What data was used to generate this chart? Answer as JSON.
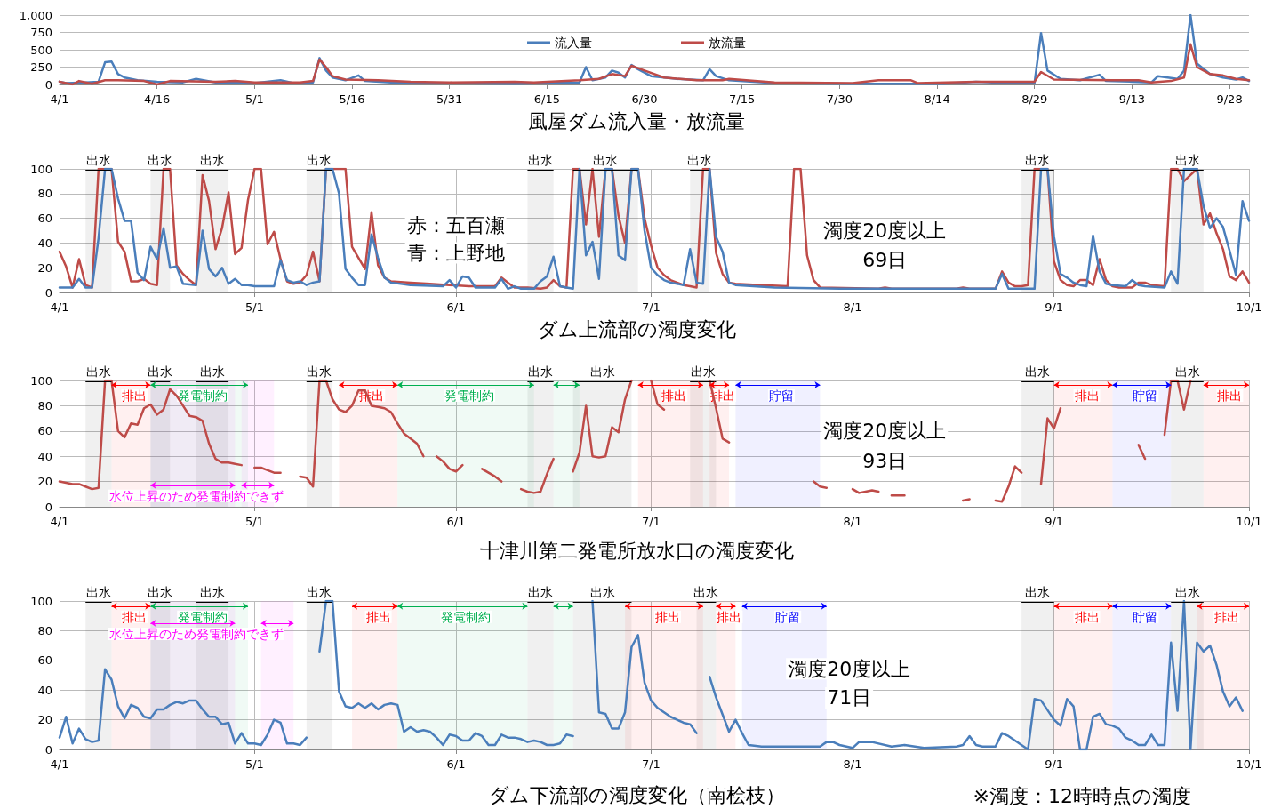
{
  "chart_data": [
    {
      "type": "line",
      "title": "風屋ダム流入量・放流量",
      "xlim": [
        "--04-01",
        "--10-01"
      ],
      "ylim": [
        0,
        1000
      ],
      "yticks": [
        0,
        250,
        500,
        750,
        {
          "value": 1000,
          "label": "1,000"
        }
      ],
      "xticks": [
        {
          "value": "--04-01",
          "label": "4/1"
        },
        {
          "value": "--04-16",
          "label": "4/16"
        },
        {
          "value": "--05-01",
          "label": "5/1"
        },
        {
          "value": "--05-16",
          "label": "5/16"
        },
        {
          "value": "--05-31",
          "label": "5/31"
        },
        {
          "value": "--06-15",
          "label": "6/15"
        },
        {
          "value": "--06-30",
          "label": "6/30"
        },
        {
          "value": "--07-15",
          "label": "7/15"
        },
        {
          "value": "--07-30",
          "label": "7/30"
        },
        {
          "value": "--08-14",
          "label": "8/14"
        },
        {
          "value": "--08-29",
          "label": "8/29"
        },
        {
          "value": "--09-13",
          "label": "9/13"
        },
        {
          "value": "--09-28",
          "label": "9/28"
        }
      ],
      "grid": "y",
      "legend": "top",
      "marker": "none",
      "line_style": "solid",
      "series": [
        {
          "name": "流入量",
          "color": "#4a7ebb",
          "x": [
            "--04-01",
            "--04-02",
            "--04-05",
            "--04-07",
            "--04-08",
            "--04-09",
            "--04-10",
            "--04-11",
            "--04-13",
            "--04-16",
            "--04-20",
            "--04-22",
            "--04-25",
            "--05-01",
            "--05-05",
            "--05-07",
            "--05-10",
            "--05-11",
            "--05-12",
            "--05-13",
            "--05-15",
            "--05-17",
            "--05-18",
            "--05-22",
            "--05-31",
            "--06-10",
            "--06-20",
            "--06-21",
            "--06-22",
            "--06-24",
            "--06-25",
            "--06-26",
            "--06-27",
            "--06-28",
            "--06-29",
            "--07-01",
            "--07-05",
            "--07-09",
            "--07-10",
            "--07-11",
            "--07-13",
            "--07-20",
            "--08-01",
            "--08-15",
            "--08-20",
            "--08-25",
            "--08-29",
            "--08-30",
            "--08-31",
            "--09-02",
            "--09-05",
            "--09-08",
            "--09-09",
            "--09-13",
            "--09-16",
            "--09-17",
            "--09-20",
            "--09-21",
            "--09-22",
            "--09-23",
            "--09-25",
            "--09-27",
            "--09-29",
            "--09-30",
            "--10-01"
          ],
          "values": [
            40,
            20,
            30,
            40,
            320,
            330,
            150,
            100,
            60,
            40,
            30,
            80,
            30,
            20,
            60,
            20,
            30,
            380,
            200,
            100,
            60,
            130,
            50,
            30,
            20,
            10,
            30,
            250,
            60,
            100,
            200,
            170,
            100,
            280,
            220,
            120,
            80,
            60,
            220,
            120,
            60,
            20,
            10,
            10,
            40,
            20,
            20,
            740,
            200,
            80,
            60,
            140,
            50,
            40,
            30,
            120,
            80,
            200,
            1000,
            300,
            150,
            100,
            70,
            100,
            50
          ]
        },
        {
          "name": "放流量",
          "color": "#be4b48",
          "x": [
            "--04-01",
            "--04-03",
            "--04-04",
            "--04-06",
            "--04-08",
            "--04-10",
            "--04-14",
            "--04-16",
            "--04-18",
            "--04-25",
            "--04-28",
            "--05-01",
            "--05-08",
            "--05-10",
            "--05-11",
            "--05-12",
            "--05-13",
            "--05-15",
            "--05-20",
            "--05-25",
            "--05-31",
            "--06-10",
            "--06-13",
            "--06-20",
            "--06-23",
            "--06-25",
            "--06-27",
            "--06-28",
            "--06-30",
            "--07-03",
            "--07-08",
            "--07-12",
            "--07-13",
            "--07-20",
            "--08-01",
            "--08-05",
            "--08-10",
            "--08-11",
            "--08-20",
            "--08-29",
            "--08-30",
            "--09-01",
            "--09-10",
            "--09-14",
            "--09-16",
            "--09-19",
            "--09-21",
            "--09-22",
            "--09-23",
            "--09-25",
            "--09-27",
            "--09-29",
            "--10-01"
          ],
          "values": [
            40,
            0,
            50,
            10,
            60,
            60,
            50,
            0,
            50,
            40,
            50,
            30,
            30,
            50,
            360,
            250,
            120,
            70,
            60,
            40,
            30,
            40,
            30,
            60,
            80,
            150,
            120,
            270,
            200,
            100,
            60,
            60,
            80,
            30,
            20,
            60,
            60,
            20,
            40,
            40,
            180,
            70,
            60,
            60,
            30,
            50,
            100,
            580,
            250,
            150,
            130,
            80,
            60
          ]
        }
      ]
    },
    {
      "type": "line",
      "title": "ダム上流部の濁度変化",
      "xlim": [
        "--04-01",
        "--10-01"
      ],
      "ylim": [
        0,
        100
      ],
      "yticks": [
        0,
        20,
        40,
        60,
        80,
        100
      ],
      "xticks": [
        {
          "value": "--04-01",
          "label": "4/1"
        },
        {
          "value": "--05-01",
          "label": "5/1"
        },
        {
          "value": "--06-01",
          "label": "6/1"
        },
        {
          "value": "--07-01",
          "label": "7/1"
        },
        {
          "value": "--08-01",
          "label": "8/1"
        },
        {
          "value": "--09-01",
          "label": "9/1"
        },
        {
          "value": "--10-01",
          "label": "10/1"
        }
      ],
      "grid": true,
      "marker": "none",
      "line_style": "solid",
      "annotations": [
        "赤：五百瀬",
        "青：上野地",
        "濁度20度以上",
        "69日"
      ],
      "bands": [
        {
          "axis": "x",
          "from": "--04-05",
          "to": "--04-09",
          "label": "出水",
          "color": "#000000"
        },
        {
          "axis": "x",
          "from": "--04-15",
          "to": "--04-18",
          "label": "出水",
          "color": "#000000"
        },
        {
          "axis": "x",
          "from": "--04-22",
          "to": "--04-27",
          "label": "出水",
          "color": "#000000"
        },
        {
          "axis": "x",
          "from": "--05-09",
          "to": "--05-13",
          "label": "出水",
          "color": "#000000"
        },
        {
          "axis": "x",
          "from": "--06-12",
          "to": "--06-16",
          "label": "出水",
          "color": "#000000"
        },
        {
          "axis": "x",
          "from": "--06-19",
          "to": "--06-29",
          "label": "出水",
          "color": "#000000"
        },
        {
          "axis": "x",
          "from": "--07-07",
          "to": "--07-10",
          "label": "出水",
          "color": "#000000"
        },
        {
          "axis": "x",
          "from": "--08-27",
          "to": "--09-01",
          "label": "出水",
          "color": "#000000"
        },
        {
          "axis": "x",
          "from": "--09-19",
          "to": "--09-24",
          "label": "出水",
          "color": "#000000"
        }
      ],
      "series": [
        {
          "color": "#be4b48",
          "x": [
            "--04-01",
            "--04-02",
            "--04-03",
            "--04-04",
            "--04-05",
            "--04-06",
            "--04-07",
            "--04-08",
            "--04-09",
            "--04-10",
            "--04-11",
            "--04-12",
            "--04-13",
            "--04-14",
            "--04-15",
            "--04-16",
            "--04-17",
            "--04-18",
            "--04-19",
            "--04-20",
            "--04-21",
            "--04-22",
            "--04-23",
            "--04-24",
            "--04-25",
            "--04-26",
            "--04-27",
            "--04-28",
            "--04-29",
            "--04-30",
            "--05-01",
            "--05-02",
            "--05-03",
            "--05-04",
            "--05-05",
            "--05-06",
            "--05-07",
            "--05-08",
            "--05-09",
            "--05-10",
            "--05-11",
            "--05-12",
            "--05-13",
            "--05-14",
            "--05-15",
            "--05-16",
            "--05-17",
            "--05-18",
            "--05-19",
            "--05-20",
            "--05-21",
            "--05-22",
            "--05-25",
            "--05-28",
            "--05-31",
            "--06-03",
            "--06-07",
            "--06-08",
            "--06-09",
            "--06-10",
            "--06-12",
            "--06-14",
            "--06-15",
            "--06-16",
            "--06-17",
            "--06-18",
            "--06-19",
            "--06-20",
            "--06-21",
            "--06-22",
            "--06-23",
            "--06-24",
            "--06-25",
            "--06-26",
            "--06-27",
            "--06-28",
            "--06-29",
            "--06-30",
            "--07-01",
            "--07-02",
            "--07-03",
            "--07-04",
            "--07-05",
            "--07-06",
            "--07-07",
            "--07-08",
            "--07-09",
            "--07-10",
            "--07-11",
            "--07-12",
            "--07-13",
            "--07-14",
            "--07-18",
            "--07-22",
            "--07-23",
            "--07-24",
            "--07-25",
            "--07-26",
            "--07-27",
            "--08-05",
            "--08-06",
            "--08-07",
            "--08-17",
            "--08-18",
            "--08-19",
            "--08-23",
            "--08-24",
            "--08-25",
            "--08-26",
            "--08-27",
            "--08-28",
            "--08-29",
            "--08-30",
            "--08-31",
            "--09-01",
            "--09-02",
            "--09-03",
            "--09-04",
            "--09-05",
            "--09-06",
            "--09-07",
            "--09-08",
            "--09-09",
            "--09-10",
            "--09-11",
            "--09-13",
            "--09-14",
            "--09-15",
            "--09-16",
            "--09-18",
            "--09-19",
            "--09-20",
            "--09-21",
            "--09-22",
            "--09-23",
            "--09-24",
            "--09-25",
            "--09-26",
            "--09-27",
            "--09-28",
            "--09-29",
            "--09-30",
            "--10-01"
          ],
          "values": [
            33,
            21,
            4,
            27,
            6,
            4,
            100,
            100,
            100,
            41,
            33,
            9,
            9,
            11,
            7,
            6,
            100,
            100,
            22,
            15,
            10,
            6,
            95,
            74,
            35,
            52,
            81,
            31,
            36,
            75,
            100,
            100,
            39,
            49,
            27,
            9,
            7,
            8,
            14,
            33,
            9,
            100,
            100,
            100,
            100,
            37,
            28,
            19,
            65,
            22,
            12,
            9,
            8,
            7,
            6,
            5,
            5,
            12,
            8,
            4,
            4,
            3,
            4,
            10,
            5,
            4,
            100,
            100,
            55,
            100,
            45,
            100,
            100,
            62,
            40,
            100,
            100,
            60,
            38,
            20,
            14,
            10,
            8,
            6,
            5,
            4,
            100,
            100,
            32,
            15,
            8,
            7,
            6,
            5,
            100,
            100,
            30,
            10,
            4,
            3,
            4,
            3,
            3,
            4,
            3,
            3,
            17,
            8,
            5,
            5,
            6,
            100,
            100,
            100,
            25,
            10,
            6,
            5,
            10,
            10,
            6,
            27,
            10,
            5,
            4,
            4,
            8,
            8,
            6,
            5,
            100,
            100,
            90,
            95,
            100,
            55,
            64,
            48,
            35,
            13,
            10,
            17,
            8
          ]
        },
        {
          "color": "#4a7ebb",
          "x": [
            "--04-01",
            "--04-03",
            "--04-04",
            "--04-05",
            "--04-06",
            "--04-07",
            "--04-08",
            "--04-09",
            "--04-10",
            "--04-11",
            "--04-12",
            "--04-13",
            "--04-14",
            "--04-15",
            "--04-16",
            "--04-17",
            "--04-18",
            "--04-19",
            "--04-20",
            "--04-22",
            "--04-23",
            "--04-24",
            "--04-25",
            "--04-26",
            "--04-27",
            "--04-28",
            "--04-29",
            "--04-30",
            "--05-01",
            "--05-04",
            "--05-05",
            "--05-06",
            "--05-07",
            "--05-08",
            "--05-09",
            "--05-10",
            "--05-11",
            "--05-12",
            "--05-13",
            "--05-14",
            "--05-15",
            "--05-16",
            "--05-17",
            "--05-18",
            "--05-19",
            "--05-20",
            "--05-21",
            "--05-22",
            "--05-25",
            "--05-30",
            "--05-31",
            "--06-01",
            "--06-02",
            "--06-03",
            "--06-04",
            "--06-07",
            "--06-08",
            "--06-09",
            "--06-10",
            "--06-11",
            "--06-13",
            "--06-14",
            "--06-15",
            "--06-16",
            "--06-17",
            "--06-18",
            "--06-19",
            "--06-20",
            "--06-21",
            "--06-22",
            "--06-23",
            "--06-24",
            "--06-25",
            "--06-26",
            "--06-27",
            "--06-28",
            "--06-29",
            "--06-30",
            "--07-01",
            "--07-02",
            "--07-03",
            "--07-04",
            "--07-05",
            "--07-06",
            "--07-07",
            "--07-08",
            "--07-09",
            "--07-10",
            "--07-11",
            "--07-12",
            "--07-13",
            "--07-14",
            "--07-20",
            "--07-30",
            "--08-23",
            "--08-24",
            "--08-25",
            "--08-29",
            "--08-30",
            "--08-31",
            "--09-01",
            "--09-02",
            "--09-03",
            "--09-04",
            "--09-05",
            "--09-06",
            "--09-07",
            "--09-08",
            "--09-09",
            "--09-10",
            "--09-12",
            "--09-13",
            "--09-14",
            "--09-15",
            "--09-18",
            "--09-19",
            "--09-20",
            "--09-21",
            "--09-22",
            "--09-23",
            "--09-24",
            "--09-25",
            "--09-26",
            "--09-27",
            "--09-28",
            "--09-29",
            "--09-30",
            "--10-01"
          ],
          "values": [
            4,
            4,
            11,
            4,
            4,
            44,
            100,
            100,
            76,
            58,
            58,
            16,
            10,
            37,
            27,
            52,
            20,
            21,
            7,
            6,
            50,
            19,
            13,
            20,
            7,
            11,
            6,
            6,
            5,
            5,
            26,
            10,
            8,
            9,
            6,
            8,
            9,
            100,
            100,
            80,
            19,
            12,
            6,
            6,
            47,
            28,
            12,
            8,
            6,
            5,
            10,
            4,
            13,
            12,
            4,
            4,
            11,
            3,
            5,
            3,
            3,
            9,
            13,
            29,
            5,
            4,
            3,
            100,
            30,
            41,
            11,
            100,
            100,
            30,
            26,
            100,
            100,
            50,
            20,
            14,
            10,
            8,
            7,
            6,
            35,
            8,
            7,
            100,
            45,
            33,
            8,
            6,
            4,
            3,
            3,
            15,
            3,
            3,
            100,
            100,
            45,
            15,
            12,
            8,
            6,
            5,
            46,
            17,
            7,
            6,
            5,
            10,
            6,
            5,
            4,
            17,
            7,
            100,
            100,
            100,
            70,
            52,
            60,
            53,
            34,
            14,
            74,
            58
          ]
        }
      ]
    },
    {
      "type": "line",
      "title": "十津川第二発電所放水口の濁度変化",
      "xlim": [
        "--04-01",
        "--10-01"
      ],
      "ylim": [
        0,
        100
      ],
      "yticks": [
        0,
        20,
        40,
        60,
        80,
        100
      ],
      "xticks": [
        {
          "value": "--04-01",
          "label": "4/1"
        },
        {
          "value": "--05-01",
          "label": "5/1"
        },
        {
          "value": "--06-01",
          "label": "6/1"
        },
        {
          "value": "--07-01",
          "label": "7/1"
        },
        {
          "value": "--08-01",
          "label": "8/1"
        },
        {
          "value": "--09-01",
          "label": "9/1"
        },
        {
          "value": "--10-01",
          "label": "10/1"
        }
      ],
      "grid": true,
      "marker": "none",
      "line_style": "solid",
      "annotations": [
        "濁度20度以上",
        "93日"
      ],
      "bands": [
        {
          "axis": "x",
          "from": "--04-05",
          "to": "--04-09",
          "label": "出水",
          "color": "#000000"
        },
        {
          "axis": "x",
          "from": "--04-15",
          "to": "--04-18",
          "label": "出水",
          "color": "#000000"
        },
        {
          "axis": "x",
          "from": "--04-22",
          "to": "--04-27",
          "label": "出水",
          "color": "#000000"
        },
        {
          "axis": "x",
          "from": "--05-09",
          "to": "--05-13",
          "label": "出水",
          "color": "#000000"
        },
        {
          "axis": "x",
          "from": "--06-12",
          "to": "--06-16",
          "label": "出水",
          "color": "#000000"
        },
        {
          "axis": "x",
          "from": "--06-19",
          "to": "--06-28",
          "label": "出水",
          "color": "#000000"
        },
        {
          "axis": "x",
          "from": "--07-07",
          "to": "--07-11",
          "label": "出水",
          "color": "#000000"
        },
        {
          "axis": "x",
          "from": "--08-27",
          "to": "--09-01",
          "label": "出水",
          "color": "#000000"
        },
        {
          "axis": "x",
          "from": "--09-19",
          "to": "--09-24",
          "label": "出水",
          "color": "#000000"
        },
        {
          "axis": "x",
          "from": "--04-09",
          "to": "--04-15",
          "label": "排出",
          "color": "#ff0000"
        },
        {
          "axis": "x",
          "from": "--04-15",
          "to": "--04-30",
          "label": "発電制約",
          "color": "#00b050"
        },
        {
          "axis": "x",
          "from": "--04-15",
          "to": "--04-28",
          "label": "水位上昇のため発電制約できず",
          "color": "#ff00ff"
        },
        {
          "axis": "x",
          "from": "--04-29",
          "to": "--05-04",
          "label": null,
          "color": "#ff00ff"
        },
        {
          "axis": "x",
          "from": "--05-14",
          "to": "--05-23",
          "label": "排出",
          "color": "#ff0000"
        },
        {
          "axis": "x",
          "from": "--05-23",
          "to": "--06-13",
          "label": "発電制約",
          "color": "#00b050"
        },
        {
          "axis": "x",
          "from": "--06-16",
          "to": "--06-20",
          "label": null,
          "color": "#00b050"
        },
        {
          "axis": "x",
          "from": "--06-29",
          "to": "--07-09",
          "label": "排出",
          "color": "#ff0000"
        },
        {
          "axis": "x",
          "from": "--07-10",
          "to": "--07-13",
          "label": "排出",
          "color": "#ff0000"
        },
        {
          "axis": "x",
          "from": "--07-14",
          "to": "--07-27",
          "label": "貯留",
          "color": "#0000ff"
        },
        {
          "axis": "x",
          "from": "--09-01",
          "to": "--09-10",
          "label": "排出",
          "color": "#ff0000"
        },
        {
          "axis": "x",
          "from": "--09-10",
          "to": "--09-19",
          "label": "貯留",
          "color": "#0000ff"
        },
        {
          "axis": "x",
          "from": "--09-24",
          "to": "--10-01",
          "label": "排出",
          "color": "#ff0000"
        }
      ],
      "series": [
        {
          "color": "#be4b48",
          "x": [
            "--04-01",
            "--04-02",
            "--04-03",
            "--04-04",
            "--04-05",
            "--04-06",
            "--04-07",
            "--04-08",
            "--04-09",
            "--04-10",
            "--04-11",
            "--04-12",
            "--04-13",
            "--04-14",
            "--04-15",
            "--04-16",
            "--04-17",
            "--04-18",
            "--04-19",
            "--04-20",
            "--04-21",
            "--04-22",
            "--04-23",
            "--04-24",
            "--04-25",
            "--04-26",
            "--04-27",
            "--04-28",
            "--04-29",
            "--04-30",
            "--05-01",
            "--05-02",
            "--05-03",
            "--05-04",
            "--05-05",
            "--05-06",
            "--05-08",
            "--05-09",
            "--05-10",
            "--05-11",
            "--05-12",
            "--05-13",
            "--05-14",
            "--05-15",
            "--05-16",
            "--05-17",
            "--05-18",
            "--05-19",
            "--05-20",
            "--05-21",
            "--05-22",
            "--05-23",
            "--05-24",
            "--05-25",
            "--05-26",
            "--05-27",
            "--05-28",
            "--05-29",
            "--05-30",
            "--05-31",
            "--06-01",
            "--06-02",
            "--06-03",
            "--06-05",
            "--06-06",
            "--06-07",
            "--06-08",
            "--06-09",
            "--06-11",
            "--06-12",
            "--06-13",
            "--06-14",
            "--06-15",
            "--06-16",
            "--06-17",
            "--06-19",
            "--06-20",
            "--06-21",
            "--06-22",
            "--06-23",
            "--06-24",
            "--06-25",
            "--06-26",
            "--06-27",
            "--06-28",
            "--06-29",
            "--07-01",
            "--07-02",
            "--07-03",
            "--07-04",
            "--07-10",
            "--07-11",
            "--07-12",
            "--07-13",
            "--07-14",
            "--07-26",
            "--07-27",
            "--07-28",
            "--07-29",
            "--08-01",
            "--08-02",
            "--08-03",
            "--08-04",
            "--08-05",
            "--08-06",
            "--08-07",
            "--08-09",
            "--08-10",
            "--08-18",
            "--08-19",
            "--08-20",
            "--08-23",
            "--08-24",
            "--08-25",
            "--08-26",
            "--08-27",
            "--08-28",
            "--08-30",
            "--08-31",
            "--09-01",
            "--09-02",
            "--09-03",
            "--09-14",
            "--09-15",
            "--09-16",
            "--09-18",
            "--09-19",
            "--09-20",
            "--09-21",
            "--09-22"
          ],
          "values": [
            20,
            19,
            18,
            18,
            16,
            14,
            15,
            100,
            100,
            60,
            55,
            66,
            65,
            78,
            81,
            73,
            77,
            93,
            88,
            80,
            72,
            71,
            68,
            50,
            38,
            35,
            35,
            34,
            33,
            null,
            31,
            31,
            29,
            27,
            27,
            null,
            24,
            23,
            16,
            100,
            100,
            85,
            77,
            75,
            80,
            92,
            92,
            80,
            79,
            78,
            75,
            66,
            58,
            54,
            50,
            40,
            null,
            40,
            36,
            30,
            28,
            33,
            null,
            30,
            27,
            24,
            20,
            null,
            14,
            12,
            11,
            12,
            26,
            38,
            null,
            28,
            43,
            80,
            40,
            39,
            40,
            63,
            59,
            85,
            100,
            null,
            100,
            81,
            77,
            null,
            100,
            78,
            54,
            51,
            null,
            20,
            16,
            15,
            null,
            14,
            11,
            12,
            13,
            12,
            null,
            9,
            9,
            null,
            5,
            6,
            null,
            5,
            4,
            16,
            32,
            27,
            null,
            18,
            70,
            62,
            78,
            null,
            49,
            38,
            null,
            57,
            100,
            100,
            77,
            100
          ]
        }
      ]
    },
    {
      "type": "line",
      "title": "ダム下流部の濁度変化（南桧枝）",
      "xlim": [
        "--04-01",
        "--10-01"
      ],
      "ylim": [
        0,
        100
      ],
      "yticks": [
        0,
        20,
        40,
        60,
        80,
        100
      ],
      "xticks": [
        {
          "value": "--04-01",
          "label": "4/1"
        },
        {
          "value": "--05-01",
          "label": "5/1"
        },
        {
          "value": "--06-01",
          "label": "6/1"
        },
        {
          "value": "--07-01",
          "label": "7/1"
        },
        {
          "value": "--08-01",
          "label": "8/1"
        },
        {
          "value": "--09-01",
          "label": "9/1"
        },
        {
          "value": "--10-01",
          "label": "10/1"
        }
      ],
      "grid": true,
      "marker": "none",
      "line_style": "solid",
      "annotations": [
        "濁度20度以上",
        "71日",
        "※濁度：12時時点の濁度"
      ],
      "bands": [
        {
          "axis": "x",
          "from": "--04-05",
          "to": "--04-09",
          "label": "出水",
          "color": "#000000"
        },
        {
          "axis": "x",
          "from": "--04-15",
          "to": "--04-18",
          "label": "出水",
          "color": "#000000"
        },
        {
          "axis": "x",
          "from": "--04-22",
          "to": "--04-27",
          "label": "出水",
          "color": "#000000"
        },
        {
          "axis": "x",
          "from": "--05-09",
          "to": "--05-13",
          "label": "出水",
          "color": "#000000"
        },
        {
          "axis": "x",
          "from": "--06-12",
          "to": "--06-16",
          "label": "出水",
          "color": "#000000"
        },
        {
          "axis": "x",
          "from": "--06-19",
          "to": "--06-28",
          "label": "出水",
          "color": "#000000"
        },
        {
          "axis": "x",
          "from": "--07-08",
          "to": "--07-11",
          "label": "出水",
          "color": "#000000"
        },
        {
          "axis": "x",
          "from": "--08-27",
          "to": "--09-01",
          "label": "出水",
          "color": "#000000"
        },
        {
          "axis": "x",
          "from": "--09-19",
          "to": "--09-24",
          "label": "出水",
          "color": "#000000"
        },
        {
          "axis": "x",
          "from": "--04-09",
          "to": "--04-15",
          "label": "排出",
          "color": "#ff0000"
        },
        {
          "axis": "x",
          "from": "--04-15",
          "to": "--04-30",
          "label": "発電制約",
          "color": "#00b050"
        },
        {
          "axis": "x",
          "from": "--04-15",
          "to": "--04-28",
          "label": "水位上昇のため発電制約できず",
          "color": "#ff00ff"
        },
        {
          "axis": "x",
          "from": "--05-02",
          "to": "--05-07",
          "label": null,
          "color": "#ff00ff"
        },
        {
          "axis": "x",
          "from": "--05-16",
          "to": "--05-23",
          "label": "排出",
          "color": "#ff0000"
        },
        {
          "axis": "x",
          "from": "--05-23",
          "to": "--06-12",
          "label": "発電制約",
          "color": "#00b050"
        },
        {
          "axis": "x",
          "from": "--06-16",
          "to": "--06-19",
          "label": null,
          "color": "#00b050"
        },
        {
          "axis": "x",
          "from": "--06-27",
          "to": "--07-09",
          "label": "排出",
          "color": "#ff0000"
        },
        {
          "axis": "x",
          "from": "--07-11",
          "to": "--07-14",
          "label": "排出",
          "color": "#ff0000"
        },
        {
          "axis": "x",
          "from": "--07-15",
          "to": "--07-28",
          "label": "貯留",
          "color": "#0000ff"
        },
        {
          "axis": "x",
          "from": "--09-01",
          "to": "--09-10",
          "label": "排出",
          "color": "#ff0000"
        },
        {
          "axis": "x",
          "from": "--09-10",
          "to": "--09-19",
          "label": "貯留",
          "color": "#0000ff"
        },
        {
          "axis": "x",
          "from": "--09-23",
          "to": "--10-01",
          "label": "排出",
          "color": "#ff0000"
        }
      ],
      "series": [
        {
          "color": "#4a7ebb",
          "x": [
            "--04-01",
            "--04-02",
            "--04-03",
            "--04-04",
            "--04-05",
            "--04-06",
            "--04-07",
            "--04-08",
            "--04-09",
            "--04-10",
            "--04-11",
            "--04-12",
            "--04-13",
            "--04-14",
            "--04-15",
            "--04-16",
            "--04-17",
            "--04-18",
            "--04-19",
            "--04-20",
            "--04-21",
            "--04-22",
            "--04-23",
            "--04-24",
            "--04-25",
            "--04-26",
            "--04-27",
            "--04-28",
            "--04-29",
            "--04-30",
            "--05-01",
            "--05-02",
            "--05-03",
            "--05-04",
            "--05-05",
            "--05-06",
            "--05-07",
            "--05-08",
            "--05-09",
            "--05-10",
            "--05-11",
            "--05-12",
            "--05-13",
            "--05-14",
            "--05-15",
            "--05-16",
            "--05-17",
            "--05-18",
            "--05-19",
            "--05-20",
            "--05-21",
            "--05-22",
            "--05-23",
            "--05-24",
            "--05-25",
            "--05-26",
            "--05-27",
            "--05-28",
            "--05-29",
            "--05-30",
            "--05-31",
            "--06-01",
            "--06-02",
            "--06-03",
            "--06-04",
            "--06-05",
            "--06-06",
            "--06-07",
            "--06-08",
            "--06-09",
            "--06-10",
            "--06-11",
            "--06-12",
            "--06-13",
            "--06-14",
            "--06-15",
            "--06-16",
            "--06-17",
            "--06-18",
            "--06-19",
            "--06-20",
            "--06-22",
            "--06-23",
            "--06-24",
            "--06-25",
            "--06-26",
            "--06-27",
            "--06-28",
            "--06-29",
            "--06-30",
            "--07-01",
            "--07-02",
            "--07-03",
            "--07-04",
            "--07-05",
            "--07-06",
            "--07-07",
            "--07-08",
            "--07-09",
            "--07-10",
            "--07-11",
            "--07-13",
            "--07-14",
            "--07-15",
            "--07-16",
            "--07-18",
            "--07-22",
            "--07-27",
            "--07-28",
            "--07-29",
            "--07-30",
            "--08-01",
            "--08-02",
            "--08-04",
            "--08-07",
            "--08-09",
            "--08-12",
            "--08-17",
            "--08-18",
            "--08-19",
            "--08-20",
            "--08-21",
            "--08-23",
            "--08-24",
            "--08-25",
            "--08-28",
            "--08-29",
            "--08-30",
            "--09-01",
            "--09-02",
            "--09-03",
            "--09-04",
            "--09-05",
            "--09-06",
            "--09-07",
            "--09-08",
            "--09-09",
            "--09-10",
            "--09-11",
            "--09-12",
            "--09-13",
            "--09-14",
            "--09-15",
            "--09-16",
            "--09-17",
            "--09-18",
            "--09-19",
            "--09-20",
            "--09-21",
            "--09-22",
            "--09-23",
            "--09-24",
            "--09-25",
            "--09-26",
            "--09-27",
            "--09-28",
            "--09-29",
            "--09-30"
          ],
          "values": [
            8,
            22,
            4,
            14,
            7,
            5,
            6,
            54,
            47,
            29,
            21,
            30,
            28,
            22,
            21,
            27,
            27,
            30,
            32,
            31,
            33,
            33,
            27,
            22,
            22,
            17,
            18,
            4,
            11,
            4,
            4,
            3,
            10,
            20,
            18,
            4,
            4,
            3,
            8,
            null,
            66,
            100,
            100,
            39,
            29,
            28,
            31,
            28,
            31,
            27,
            30,
            31,
            30,
            12,
            15,
            12,
            13,
            12,
            8,
            3,
            10,
            9,
            6,
            6,
            11,
            9,
            3,
            3,
            10,
            8,
            8,
            7,
            5,
            6,
            5,
            3,
            3,
            4,
            10,
            9,
            null,
            100,
            25,
            24,
            14,
            14,
            25,
            69,
            77,
            45,
            33,
            28,
            25,
            22,
            20,
            18,
            17,
            11,
            null,
            49,
            35,
            12,
            20,
            11,
            3,
            2,
            2,
            2,
            5,
            5,
            3,
            1,
            5,
            5,
            2,
            3,
            1,
            2,
            3,
            9,
            3,
            2,
            2,
            11,
            9,
            0,
            34,
            33,
            20,
            16,
            34,
            29,
            0,
            0,
            22,
            24,
            17,
            16,
            14,
            8,
            6,
            3,
            3,
            10,
            3,
            3,
            72,
            26,
            100,
            0,
            72,
            66,
            70,
            57,
            39,
            29,
            35,
            26
          ]
        }
      ]
    }
  ]
}
